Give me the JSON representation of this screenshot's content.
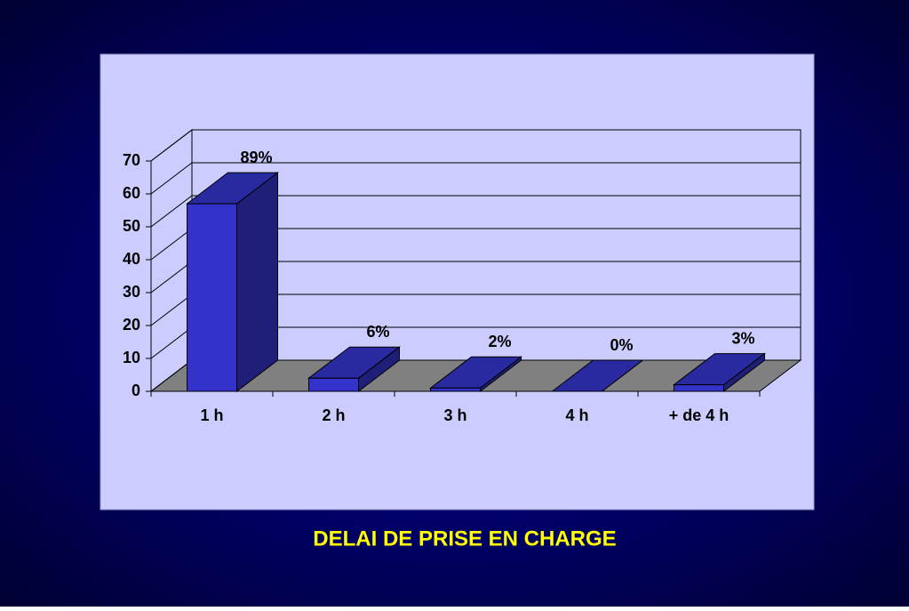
{
  "chart_data": {
    "type": "bar3d",
    "title": "DELAI DE PRISE EN CHARGE",
    "categories": [
      "1 h",
      "2 h",
      "3 h",
      "4 h",
      "+ de 4 h"
    ],
    "values": [
      57,
      4,
      1,
      0,
      2
    ],
    "percent_labels": [
      "89%",
      "6%",
      "2%",
      "0%",
      "3%"
    ],
    "color": "#3333cc",
    "ylim": [
      0,
      70
    ],
    "yticks": [
      0,
      10,
      20,
      30,
      40,
      50,
      60,
      70
    ],
    "grid": true
  }
}
